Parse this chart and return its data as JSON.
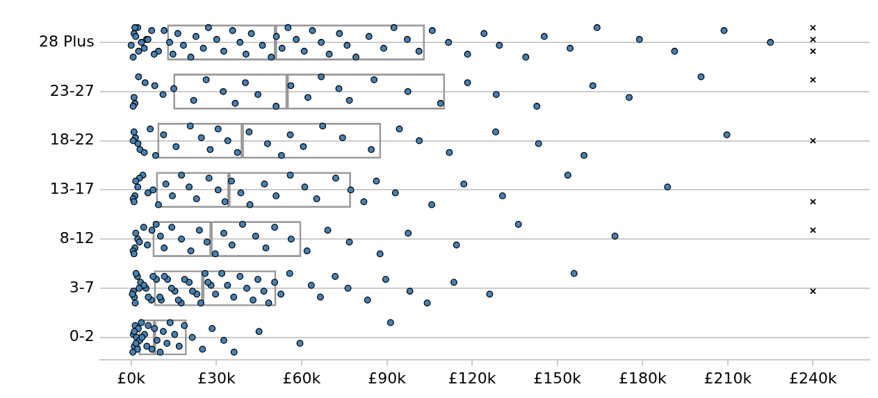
{
  "chart_data": {
    "type": "box",
    "orientation": "horizontal",
    "categories": [
      "28 Plus",
      "23-27",
      "18-22",
      "13-17",
      "8-12",
      "3-7",
      "0-2"
    ],
    "color": "#999999",
    "boxes": [
      {
        "low": 12.7,
        "q1": 12.7,
        "median": 50.8,
        "q3": 103.3,
        "high": 103.3
      },
      {
        "low": 14.9,
        "q1": 14.9,
        "median": 54.9,
        "q3": 110.4,
        "high": 110.4
      },
      {
        "low": 9.3,
        "q1": 9.3,
        "median": 39.1,
        "q3": 87.9,
        "high": 87.9
      },
      {
        "low": 8.8,
        "q1": 8.8,
        "median": 34.4,
        "q3": 77.3,
        "high": 77.3
      },
      {
        "low": 7.6,
        "q1": 7.6,
        "median": 28.1,
        "q3": 59.8,
        "high": 59.8
      },
      {
        "low": 8.1,
        "q1": 8.1,
        "median": 25.2,
        "q3": 51,
        "high": 51
      },
      {
        "low": 2.7,
        "q1": 2.7,
        "median": 8.2,
        "q3": 19.5,
        "high": 19.5
      }
    ],
    "series": [
      {
        "type": "scatter",
        "color": "#4682b4",
        "marker": "circle",
        "x": [
          "28 Plus",
          "28 Plus",
          "28 Plus",
          "28 Plus",
          "28 Plus",
          "28 Plus",
          "28 Plus",
          "28 Plus",
          "28 Plus",
          "28 Plus",
          "28 Plus",
          "28 Plus",
          "28 Plus",
          "28 Plus",
          "28 Plus",
          "28 Plus",
          "28 Plus",
          "28 Plus",
          "28 Plus",
          "28 Plus",
          "28 Plus",
          "28 Plus",
          "28 Plus",
          "28 Plus",
          "28 Plus",
          "28 Plus",
          "28 Plus",
          "28 Plus",
          "28 Plus",
          "28 Plus",
          "28 Plus",
          "28 Plus",
          "28 Plus",
          "28 Plus",
          "28 Plus",
          "28 Plus",
          "28 Plus",
          "28 Plus",
          "28 Plus",
          "28 Plus",
          "28 Plus",
          "28 Plus",
          "28 Plus",
          "28 Plus",
          "28 Plus",
          "28 Plus",
          "28 Plus",
          "28 Plus",
          "28 Plus",
          "28 Plus",
          "28 Plus",
          "28 Plus",
          "28 Plus",
          "28 Plus",
          "28 Plus",
          "28 Plus",
          "28 Plus",
          "28 Plus",
          "28 Plus",
          "28 Plus",
          "23-27",
          "23-27",
          "23-27",
          "23-27",
          "23-27",
          "23-27",
          "23-27",
          "23-27",
          "23-27",
          "23-27",
          "23-27",
          "23-27",
          "23-27",
          "23-27",
          "23-27",
          "23-27",
          "23-27",
          "23-27",
          "23-27",
          "23-27",
          "23-27",
          "23-27",
          "23-27",
          "23-27",
          "23-27",
          "23-27",
          "23-27",
          "23-27",
          "23-27",
          "18-22",
          "18-22",
          "18-22",
          "18-22",
          "18-22",
          "18-22",
          "18-22",
          "18-22",
          "18-22",
          "18-22",
          "18-22",
          "18-22",
          "18-22",
          "18-22",
          "18-22",
          "18-22",
          "18-22",
          "18-22",
          "18-22",
          "18-22",
          "18-22",
          "18-22",
          "18-22",
          "18-22",
          "18-22",
          "18-22",
          "18-22",
          "18-22",
          "18-22",
          "18-22",
          "18-22",
          "13-17",
          "13-17",
          "13-17",
          "13-17",
          "13-17",
          "13-17",
          "13-17",
          "13-17",
          "13-17",
          "13-17",
          "13-17",
          "13-17",
          "13-17",
          "13-17",
          "13-17",
          "13-17",
          "13-17",
          "13-17",
          "13-17",
          "13-17",
          "13-17",
          "13-17",
          "13-17",
          "13-17",
          "13-17",
          "13-17",
          "13-17",
          "13-17",
          "13-17",
          "13-17",
          "13-17",
          "13-17",
          "13-17",
          "13-17",
          "13-17",
          "13-17",
          "8-12",
          "8-12",
          "8-12",
          "8-12",
          "8-12",
          "8-12",
          "8-12",
          "8-12",
          "8-12",
          "8-12",
          "8-12",
          "8-12",
          "8-12",
          "8-12",
          "8-12",
          "8-12",
          "8-12",
          "8-12",
          "8-12",
          "8-12",
          "8-12",
          "8-12",
          "8-12",
          "8-12",
          "8-12",
          "8-12",
          "8-12",
          "8-12",
          "8-12",
          "8-12",
          "8-12",
          "8-12",
          "8-12",
          "3-7",
          "3-7",
          "3-7",
          "3-7",
          "3-7",
          "3-7",
          "3-7",
          "3-7",
          "3-7",
          "3-7",
          "3-7",
          "3-7",
          "3-7",
          "3-7",
          "3-7",
          "3-7",
          "3-7",
          "3-7",
          "3-7",
          "3-7",
          "3-7",
          "3-7",
          "3-7",
          "3-7",
          "3-7",
          "3-7",
          "3-7",
          "3-7",
          "3-7",
          "3-7",
          "3-7",
          "3-7",
          "3-7",
          "3-7",
          "3-7",
          "3-7",
          "3-7",
          "3-7",
          "3-7",
          "3-7",
          "3-7",
          "3-7",
          "3-7",
          "3-7",
          "3-7",
          "3-7",
          "3-7",
          "3-7",
          "3-7",
          "3-7",
          "3-7",
          "3-7",
          "3-7",
          "3-7",
          "0-2",
          "0-2",
          "0-2",
          "0-2",
          "0-2",
          "0-2",
          "0-2",
          "0-2",
          "0-2",
          "0-2",
          "0-2",
          "0-2",
          "0-2",
          "0-2",
          "0-2",
          "0-2",
          "0-2",
          "0-2",
          "0-2",
          "0-2",
          "0-2",
          "0-2",
          "0-2",
          "0-2",
          "0-2",
          "0-2",
          "0-2",
          "0-2",
          "0-2",
          "0-2",
          "0-2",
          "0-2",
          "0-2"
        ],
        "values": [
          2.3,
          5.4,
          9.6,
          7.2,
          3.6,
          8.1,
          1.0,
          0.0,
          0.7,
          1.6,
          4.6,
          1.3,
          5.9,
          2.6,
          11.6,
          13.5,
          14.7,
          16.4,
          18.4,
          21.0,
          22.8,
          25.4,
          27.2,
          30.1,
          32.6,
          35.7,
          38.3,
          40.4,
          42.3,
          46.2,
          49.3,
          51.1,
          53.1,
          55.2,
          58.1,
          60.9,
          63.8,
          66.9,
          69.7,
          73.3,
          76.0,
          79.1,
          83.7,
          88.9,
          92.5,
          97.2,
          101.3,
          106.0,
          111.7,
          118.4,
          124.2,
          129.6,
          138.9,
          145.4,
          154.5,
          164.0,
          178.9,
          191.3,
          208.7,
          225.0,
          1.3,
          4.9,
          11.2,
          0.7,
          8.3,
          1.0,
          2.6,
          15.0,
          22.0,
          26.4,
          32.4,
          36.6,
          40.2,
          44.6,
          51.0,
          56.2,
          62.2,
          66.9,
          73.1,
          76.8,
          85.5,
          97.4,
          108.9,
          118.4,
          128.5,
          142.8,
          162.5,
          175.3,
          200.6,
          1.5,
          3.1,
          6.7,
          0.7,
          4.6,
          1.0,
          2.4,
          8.6,
          11.4,
          15.8,
          20.8,
          24.7,
          27.8,
          30.6,
          34.0,
          37.4,
          41.5,
          48.0,
          52.9,
          56.0,
          60.6,
          67.4,
          74.4,
          84.5,
          94.4,
          101.4,
          112.0,
          128.3,
          143.4,
          159.4,
          209.7,
          1.3,
          4.1,
          2.3,
          0.7,
          2.9,
          7.7,
          1.0,
          1.6,
          5.9,
          9.6,
          12.2,
          14.5,
          17.7,
          20.4,
          23.0,
          27.4,
          30.6,
          33.0,
          35.3,
          38.6,
          41.8,
          46.9,
          51.0,
          56.0,
          61.1,
          65.3,
          72.0,
          77.3,
          81.9,
          86.3,
          93.0,
          105.8,
          117.1,
          130.7,
          153.7,
          188.8,
          1.3,
          4.4,
          2.3,
          0.7,
          7.3,
          2.9,
          1.0,
          1.6,
          5.7,
          8.8,
          10.3,
          11.6,
          14.3,
          17.7,
          21.0,
          24.0,
          26.7,
          29.6,
          32.6,
          35.5,
          39.2,
          43.8,
          47.4,
          50.5,
          56.3,
          61.9,
          69.2,
          76.8,
          87.6,
          97.5,
          114.5,
          136.3,
          170.3,
          1.1,
          2.2,
          5.2,
          7.1,
          8.9,
          0.8,
          1.4,
          3.3,
          0.4,
          1.7,
          4.5,
          6.0,
          7.7,
          2.8,
          10.6,
          12.8,
          15.4,
          17.6,
          20.4,
          23.1,
          26.0,
          28.1,
          10.1,
          11.7,
          14.2,
          16.6,
          18.8,
          21.6,
          24.5,
          27.0,
          29.7,
          31.9,
          33.9,
          36.1,
          38.3,
          40.7,
          42.9,
          44.6,
          46.7,
          48.4,
          50.5,
          52.7,
          55.8,
          63.4,
          66.6,
          71.8,
          76.3,
          83.2,
          89.6,
          98.1,
          104.2,
          113.6,
          126.2,
          155.9,
          0.8,
          1.1,
          1.4,
          1.9,
          2.2,
          2.5,
          3.0,
          0.6,
          1.1,
          1.7,
          3.6,
          4.7,
          5.5,
          6.0,
          3.8,
          7.3,
          8.2,
          9.1,
          10.2,
          11.3,
          12.6,
          13.7,
          15.3,
          16.9,
          18.7,
          21.5,
          25.1,
          28.5,
          32.6,
          36.2,
          45.0,
          59.4,
          91.3
        ]
      },
      {
        "type": "scatter",
        "color": "#000000",
        "marker": "cross",
        "x": [
          "28 Plus",
          "28 Plus",
          "28 Plus",
          "23-27",
          "18-22",
          "13-17",
          "8-12",
          "3-7"
        ],
        "values": [
          240,
          240,
          240,
          240,
          240,
          240,
          240,
          240
        ]
      }
    ],
    "xlim": [
      -11,
      260
    ],
    "xticks": [
      {
        "value": 0,
        "label": "£0k"
      },
      {
        "value": 30,
        "label": "£30k"
      },
      {
        "value": 60,
        "label": "£60k"
      },
      {
        "value": 90,
        "label": "£90k"
      },
      {
        "value": 120,
        "label": "£120k"
      },
      {
        "value": 150,
        "label": "£150k"
      },
      {
        "value": 180,
        "label": "£180k"
      },
      {
        "value": 210,
        "label": "£210k"
      },
      {
        "value": 240,
        "label": "£240k"
      }
    ],
    "grid": "y",
    "legend": false
  }
}
